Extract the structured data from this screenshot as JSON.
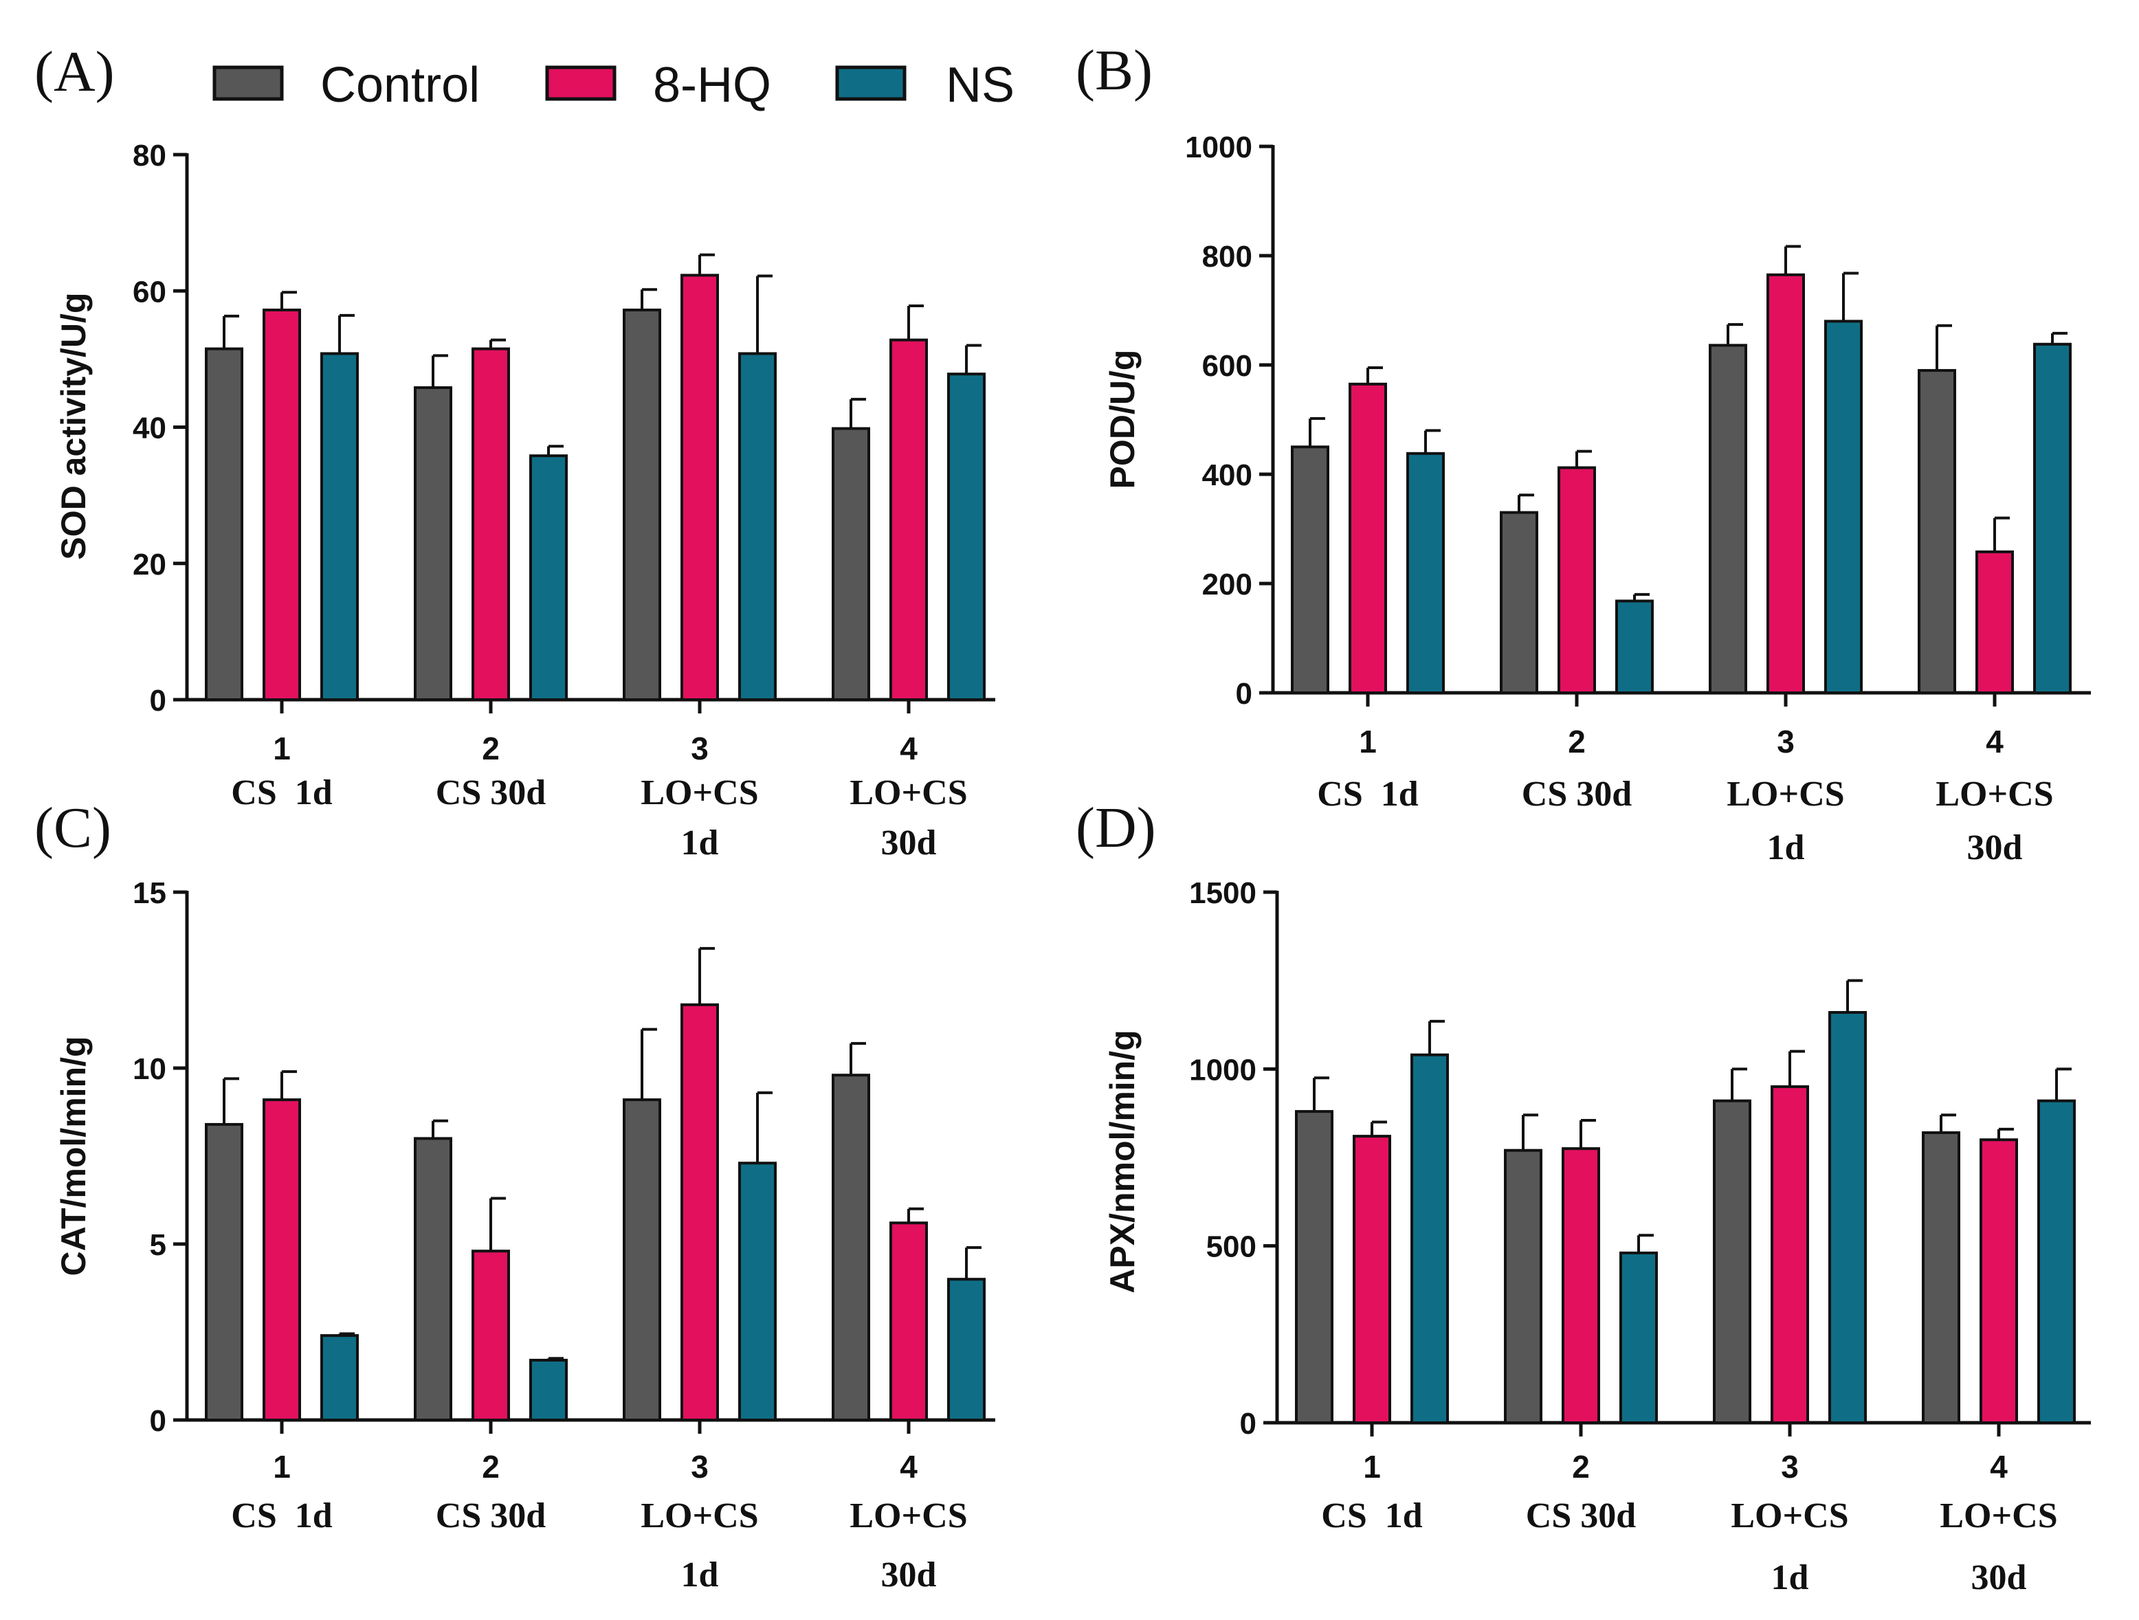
{
  "legend": [
    {
      "name": "Control",
      "color": "#575757"
    },
    {
      "name": "8-HQ",
      "color": "#e3105e"
    },
    {
      "name": "NS",
      "color": "#0f6e86"
    }
  ],
  "chart_data": [
    {
      "type": "bar",
      "panel": "(A)",
      "ylabel": "SOD activity/U/g",
      "ylim": [
        0,
        80
      ],
      "yticks": [
        0,
        20,
        40,
        60,
        80
      ],
      "categories": [
        "1",
        "2",
        "3",
        "4"
      ],
      "category_labels": [
        [
          "CS  1d"
        ],
        [
          "CS 30d"
        ],
        [
          "LO+CS",
          "1d"
        ],
        [
          "LO+CS",
          "30d"
        ]
      ],
      "series": [
        {
          "name": "Control",
          "values": [
            51.5,
            45.8,
            57.2,
            39.8
          ],
          "errors": [
            4.8,
            4.7,
            3.0,
            4.3
          ]
        },
        {
          "name": "8-HQ",
          "values": [
            57.2,
            51.5,
            62.3,
            52.8
          ],
          "errors": [
            2.6,
            1.3,
            3.0,
            5.0
          ]
        },
        {
          "name": "NS",
          "values": [
            50.8,
            35.8,
            50.8,
            47.8
          ],
          "errors": [
            5.6,
            1.4,
            11.4,
            4.2
          ]
        }
      ]
    },
    {
      "type": "bar",
      "panel": "(B)",
      "ylabel": "POD/U/g",
      "ylim": [
        0,
        1000
      ],
      "yticks": [
        0,
        200,
        400,
        600,
        800,
        1000
      ],
      "categories": [
        "1",
        "2",
        "3",
        "4"
      ],
      "category_labels": [
        [
          "CS  1d"
        ],
        [
          "CS 30d"
        ],
        [
          "LO+CS",
          "1d"
        ],
        [
          "LO+CS",
          "30d"
        ]
      ],
      "series": [
        {
          "name": "Control",
          "values": [
            450,
            330,
            636,
            590
          ],
          "errors": [
            52,
            32,
            38,
            82
          ]
        },
        {
          "name": "8-HQ",
          "values": [
            565,
            412,
            765,
            258
          ],
          "errors": [
            30,
            30,
            52,
            62
          ]
        },
        {
          "name": "NS",
          "values": [
            438,
            168,
            680,
            638
          ],
          "errors": [
            42,
            12,
            88,
            20
          ]
        }
      ]
    },
    {
      "type": "bar",
      "panel": "(C)",
      "ylabel": "CAT/mol/min/g",
      "ylim": [
        0,
        15
      ],
      "yticks": [
        0,
        5,
        10,
        15
      ],
      "categories": [
        "1",
        "2",
        "3",
        "4"
      ],
      "category_labels": [
        [
          "CS  1d"
        ],
        [
          "CS 30d"
        ],
        [
          "LO+CS",
          "1d"
        ],
        [
          "LO+CS",
          "30d"
        ]
      ],
      "series": [
        {
          "name": "Control",
          "values": [
            8.4,
            8.0,
            9.1,
            9.8
          ],
          "errors": [
            1.3,
            0.5,
            2.0,
            0.9
          ]
        },
        {
          "name": "8-HQ",
          "values": [
            9.1,
            4.8,
            11.8,
            5.6
          ],
          "errors": [
            0.8,
            1.5,
            1.6,
            0.4
          ]
        },
        {
          "name": "NS",
          "values": [
            2.4,
            1.7,
            7.3,
            4.0
          ],
          "errors": [
            0.05,
            0.05,
            2.0,
            0.9
          ]
        }
      ]
    },
    {
      "type": "bar",
      "panel": "(D)",
      "ylabel": "APX/nmol/min/g",
      "ylim": [
        0,
        1500
      ],
      "yticks": [
        0,
        500,
        1000,
        1500
      ],
      "categories": [
        "1",
        "2",
        "3",
        "4"
      ],
      "category_labels": [
        [
          "CS  1d"
        ],
        [
          "CS 30d"
        ],
        [
          "LO+CS",
          "1d"
        ],
        [
          "LO+CS",
          "30d"
        ]
      ],
      "series": [
        {
          "name": "Control",
          "values": [
            880,
            770,
            910,
            820
          ],
          "errors": [
            95,
            100,
            90,
            50
          ]
        },
        {
          "name": "8-HQ",
          "values": [
            810,
            775,
            950,
            800
          ],
          "errors": [
            40,
            80,
            100,
            30
          ]
        },
        {
          "name": "NS",
          "values": [
            1040,
            480,
            1160,
            910
          ],
          "errors": [
            95,
            50,
            90,
            90
          ]
        }
      ]
    }
  ]
}
